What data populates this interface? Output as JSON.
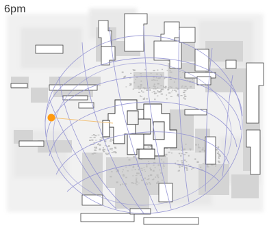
{
  "time_label": "6pm",
  "colors": {
    "background": "#ffffff",
    "map_base": "#e9e9e9",
    "building_shadow": "#d3d3d3",
    "building_outline": "#3a3a3a",
    "sun_path": "#8f8fd2",
    "sun": "#ff9a10",
    "sun_ray": "#f2c27a"
  },
  "icons": {
    "sun_marker": "sun-icon"
  }
}
